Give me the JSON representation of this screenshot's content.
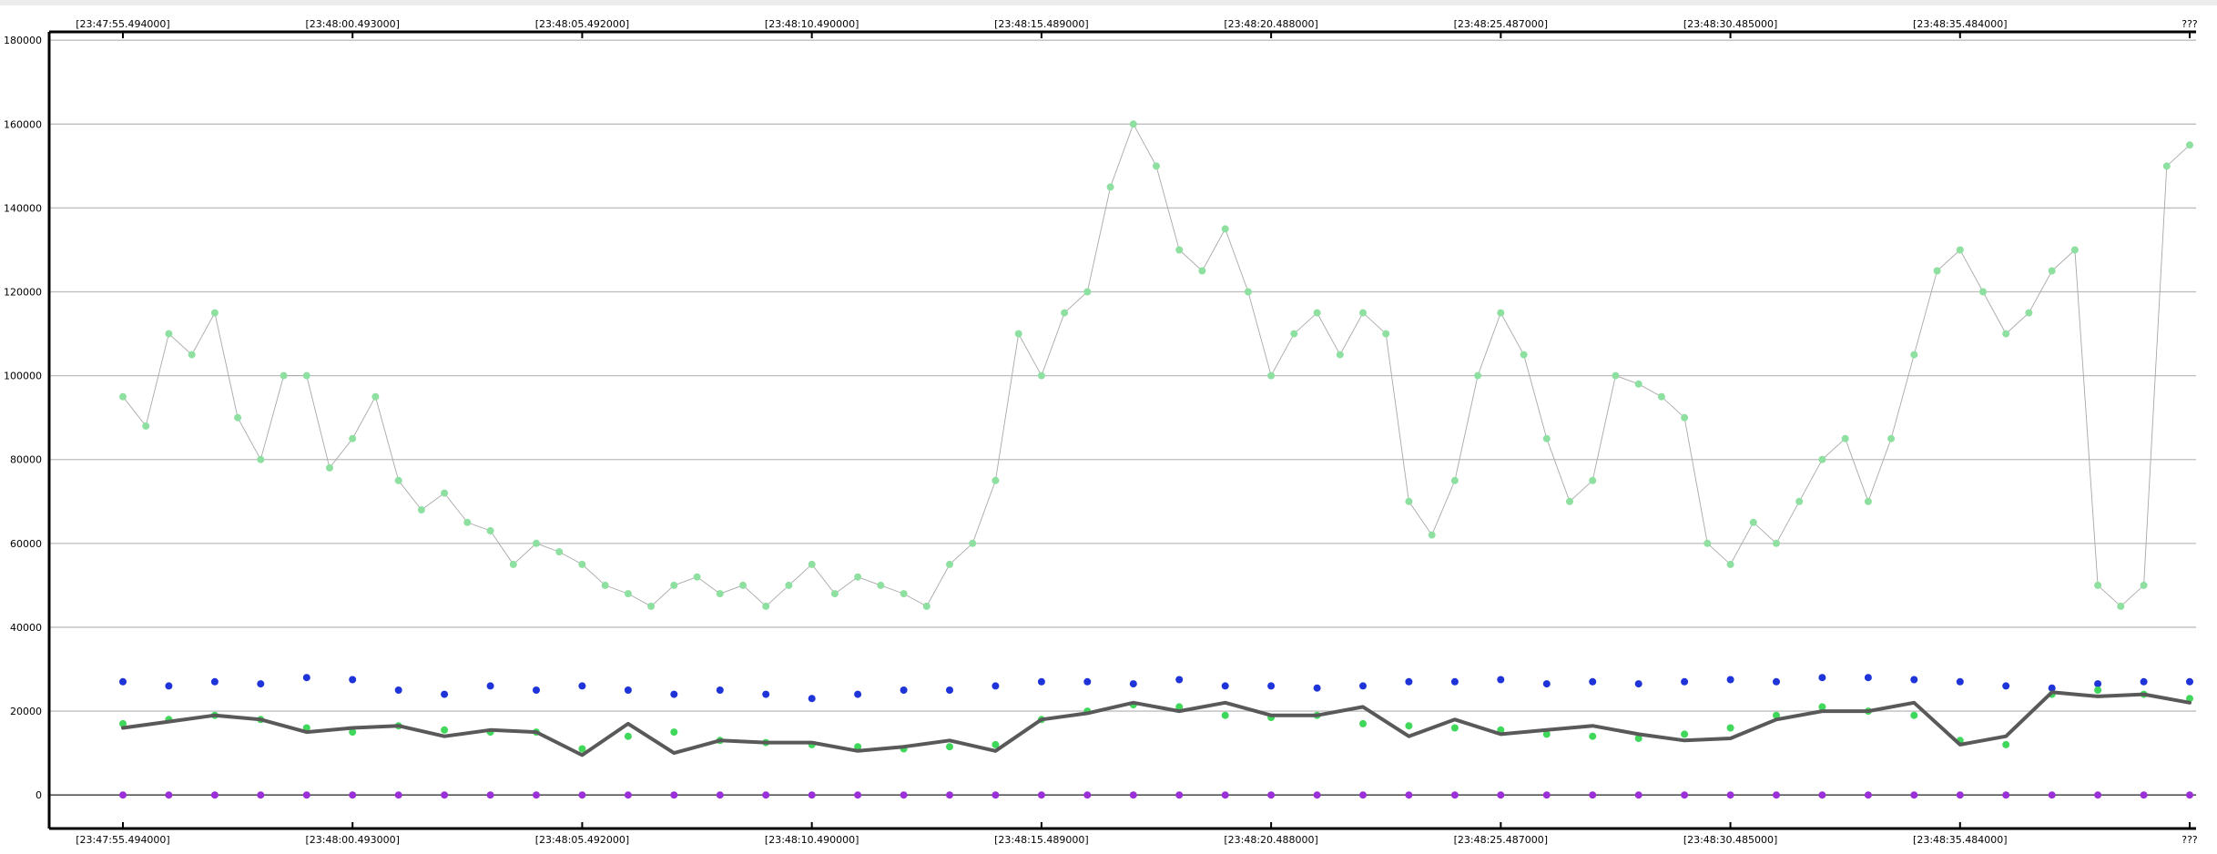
{
  "chart_data": {
    "type": "scatter",
    "title": "",
    "xlabel": "",
    "ylabel": "",
    "x_tick_labels": [
      "[23:47:55.494000]",
      "[23:48:00.493000]",
      "[23:48:05.492000]",
      "[23:48:10.490000]",
      "[23:48:15.489000]",
      "[23:48:20.488000]",
      "[23:48:25.487000]",
      "[23:48:30.485000]",
      "[23:48:35.484000]",
      "???"
    ],
    "x_tick_times_s": [
      0,
      5,
      10,
      15,
      20,
      25,
      30,
      35,
      40,
      45
    ],
    "xlim_s": [
      0,
      45
    ],
    "ylim": [
      -8000,
      182000
    ],
    "y_ticks": [
      0,
      20000,
      40000,
      60000,
      80000,
      100000,
      120000,
      140000,
      160000,
      180000
    ],
    "grid": "horizontal",
    "legend": "none",
    "series": [
      {
        "role": "large-outer",
        "color": "#8ee0a0",
        "line_color": "#a8a8a8",
        "marker": "circle",
        "x_s": [
          0,
          0.5,
          1,
          1.5,
          2,
          2.5,
          3,
          3.5,
          4,
          4.5,
          5,
          5.5,
          6,
          6.5,
          7,
          7.5,
          8,
          8.5,
          9,
          9.5,
          10,
          10.5,
          11,
          11.5,
          12,
          12.5,
          13,
          13.5,
          14,
          14.5,
          15,
          15.5,
          16,
          16.5,
          17,
          17.5,
          18,
          18.5,
          19,
          19.5,
          20,
          20.5,
          21,
          21.5,
          22,
          22.5,
          23,
          23.5,
          24,
          24.5,
          25,
          25.5,
          26,
          26.5,
          27,
          27.5,
          28,
          28.5,
          29,
          29.5,
          30,
          30.5,
          31,
          31.5,
          32,
          32.5,
          33,
          33.5,
          34,
          34.5,
          35,
          35.5,
          36,
          36.5,
          37,
          37.5,
          38,
          38.5,
          39,
          39.5,
          40,
          40.5,
          41,
          41.5,
          42,
          42.5,
          43,
          43.5,
          44,
          44.5,
          45
        ],
        "values": [
          95000,
          88000,
          110000,
          105000,
          115000,
          90000,
          80000,
          100000,
          100000,
          78000,
          85000,
          95000,
          75000,
          68000,
          72000,
          65000,
          63000,
          55000,
          60000,
          58000,
          55000,
          50000,
          48000,
          45000,
          50000,
          52000,
          48000,
          50000,
          45000,
          50000,
          55000,
          48000,
          52000,
          50000,
          48000,
          45000,
          55000,
          60000,
          75000,
          110000,
          100000,
          115000,
          120000,
          145000,
          160000,
          150000,
          130000,
          125000,
          135000,
          120000,
          100000,
          110000,
          115000,
          105000,
          115000,
          110000,
          70000,
          62000,
          75000,
          100000,
          115000,
          105000,
          85000,
          70000,
          75000,
          100000,
          98000,
          95000,
          90000,
          60000,
          55000,
          65000,
          60000,
          70000,
          80000,
          85000,
          70000,
          85000,
          105000,
          125000,
          130000,
          120000,
          110000,
          115000,
          125000,
          130000,
          50000,
          45000,
          50000,
          150000,
          155000
        ]
      },
      {
        "role": "large-inner",
        "color": "#1e34d8",
        "marker": "circle",
        "x_s": [
          0,
          1,
          2,
          3,
          4,
          5,
          6,
          7,
          8,
          9,
          10,
          11,
          12,
          13,
          14,
          15,
          16,
          17,
          18,
          19,
          20,
          21,
          22,
          23,
          24,
          25,
          26,
          27,
          28,
          29,
          30,
          31,
          32,
          33,
          34,
          35,
          36,
          37,
          38,
          39,
          40,
          41,
          42,
          43,
          44,
          45
        ],
        "values": [
          27000,
          26000,
          27000,
          26500,
          28000,
          27500,
          25000,
          24000,
          26000,
          25000,
          26000,
          25000,
          24000,
          25000,
          24000,
          23000,
          24000,
          25000,
          25000,
          26000,
          27000,
          27000,
          26500,
          27500,
          26000,
          26000,
          25500,
          26000,
          27000,
          27000,
          27500,
          26500,
          27000,
          26500,
          27000,
          27500,
          27000,
          28000,
          28000,
          27500,
          27000,
          26000,
          25500,
          26500,
          27000,
          27000
        ]
      },
      {
        "role": "medium",
        "color": "#40d85a",
        "marker": "circle",
        "x_s": [
          0,
          1,
          2,
          3,
          4,
          5,
          6,
          7,
          8,
          9,
          10,
          11,
          12,
          13,
          14,
          15,
          16,
          17,
          18,
          19,
          20,
          21,
          22,
          23,
          24,
          25,
          26,
          27,
          28,
          29,
          30,
          31,
          32,
          33,
          34,
          35,
          36,
          37,
          38,
          39,
          40,
          41,
          42,
          43,
          44,
          45
        ],
        "values": [
          17000,
          18000,
          19000,
          18000,
          16000,
          15000,
          16500,
          15500,
          15000,
          15000,
          11000,
          14000,
          15000,
          13000,
          12500,
          12000,
          11500,
          11000,
          11500,
          12000,
          18000,
          20000,
          21500,
          21000,
          19000,
          18500,
          19000,
          17000,
          16500,
          16000,
          15500,
          14500,
          14000,
          13500,
          14500,
          16000,
          19000,
          21000,
          20000,
          19000,
          13000,
          12000,
          24000,
          25000,
          24000,
          23000
        ]
      },
      {
        "role": "moving-average",
        "color": "#595959",
        "marker": "none",
        "x_s": [
          0,
          1,
          2,
          3,
          4,
          5,
          6,
          7,
          8,
          9,
          10,
          11,
          12,
          13,
          14,
          15,
          16,
          17,
          18,
          19,
          20,
          21,
          22,
          23,
          24,
          25,
          26,
          27,
          28,
          29,
          30,
          31,
          32,
          33,
          34,
          35,
          36,
          37,
          38,
          39,
          40,
          41,
          42,
          43,
          44,
          45
        ],
        "values": [
          16000,
          17500,
          19000,
          18000,
          15000,
          16000,
          16500,
          14000,
          15500,
          15000,
          9500,
          17000,
          10000,
          13000,
          12500,
          12500,
          10500,
          11500,
          13000,
          10500,
          18000,
          19500,
          22000,
          20000,
          22000,
          19000,
          19000,
          21000,
          14000,
          18000,
          14500,
          15500,
          16500,
          14500,
          13000,
          13500,
          18000,
          20000,
          20000,
          22000,
          12000,
          14000,
          24500,
          23500,
          24000,
          22000
        ]
      },
      {
        "role": "small",
        "color": "#9b30d8",
        "marker": "circle",
        "x_s": [
          0,
          1,
          2,
          3,
          4,
          5,
          6,
          7,
          8,
          9,
          10,
          11,
          12,
          13,
          14,
          15,
          16,
          17,
          18,
          19,
          20,
          21,
          22,
          23,
          24,
          25,
          26,
          27,
          28,
          29,
          30,
          31,
          32,
          33,
          34,
          35,
          36,
          37,
          38,
          39,
          40,
          41,
          42,
          43,
          44,
          45
        ],
        "values": [
          0,
          0,
          0,
          0,
          0,
          0,
          0,
          0,
          0,
          0,
          0,
          0,
          0,
          0,
          0,
          0,
          0,
          0,
          0,
          0,
          0,
          0,
          0,
          0,
          0,
          0,
          0,
          0,
          0,
          0,
          0,
          0,
          0,
          0,
          0,
          0,
          0,
          0,
          0,
          0,
          0,
          0,
          0,
          0,
          0,
          0
        ]
      }
    ]
  }
}
